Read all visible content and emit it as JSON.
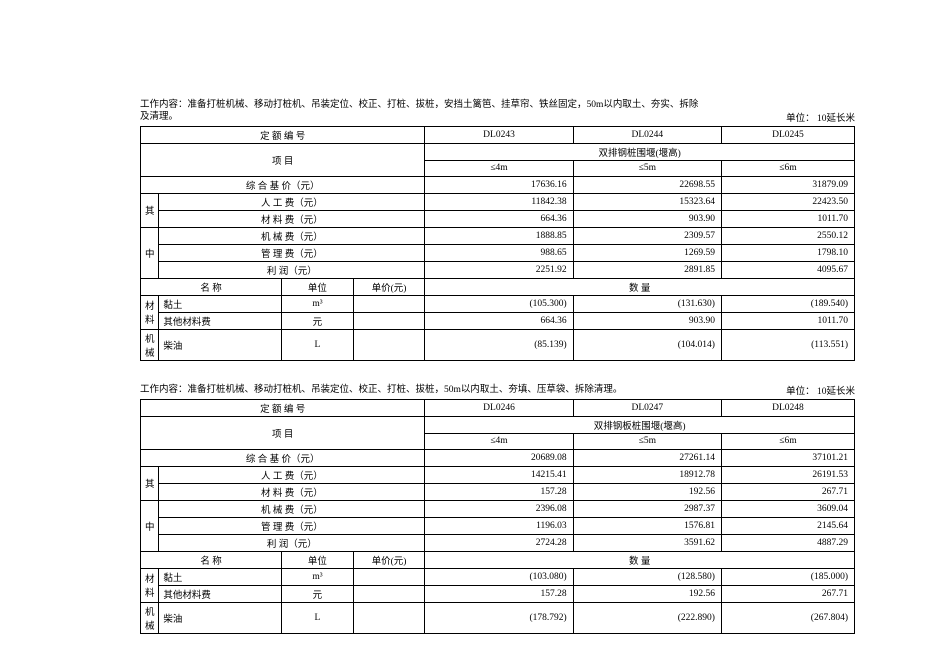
{
  "tables": [
    {
      "desc": "工作内容：准备打桩机械、移动打桩机、吊装定位、校正、打桩、拔桩，安挡土篱笆、挂草帘、铁丝固定，50m以内取土、夯实、拆除及清理。",
      "unit": "单位： 10延长米",
      "header_group": "双排钢桩围堰(堰高)",
      "codes": [
        "DL0243",
        "DL0244",
        "DL0245"
      ],
      "sizes": [
        "≤4m",
        "≤5m",
        "≤6m"
      ],
      "base_price_label": "综  合    基  价（元）",
      "base_price": [
        "17636.16",
        "22698.55",
        "31879.09"
      ],
      "cost_rows": [
        {
          "label": "人    工    费（元）",
          "v": [
            "11842.38",
            "15323.64",
            "22423.50"
          ]
        },
        {
          "label": "材    料    费（元）",
          "v": [
            "664.36",
            "903.90",
            "1011.70"
          ]
        },
        {
          "label": "机    械    费（元）",
          "v": [
            "1888.85",
            "2309.57",
            "2550.12"
          ]
        },
        {
          "label": "管    理    费（元）",
          "v": [
            "988.65",
            "1269.59",
            "1798.10"
          ]
        },
        {
          "label": "利          润（元）",
          "v": [
            "2251.92",
            "2891.85",
            "4095.67"
          ]
        }
      ],
      "side_top": "其",
      "side_bot": "中",
      "itemhdr": {
        "name": "名              称",
        "unit": "单位",
        "price": "单价(元)",
        "qty": "数                            量"
      },
      "mat_side": "材料",
      "mat_rows": [
        {
          "name": "黏土",
          "unit": "m³",
          "price": "",
          "v": [
            "(105.300)",
            "(131.630)",
            "(189.540)"
          ]
        },
        {
          "name": "其他材料费",
          "unit": "元",
          "price": "",
          "v": [
            "664.36",
            "903.90",
            "1011.70"
          ]
        }
      ],
      "mech_side": "机械",
      "mech_rows": [
        {
          "name": "柴油",
          "unit": "L",
          "price": "",
          "v": [
            "(85.139)",
            "(104.014)",
            "(113.551)"
          ]
        }
      ],
      "row_de": "定            额            编            号",
      "row_xiang": "项                             目"
    },
    {
      "desc": "工作内容：准备打桩机械、移动打桩机、吊装定位、校正、打桩、拔桩，50m以内取土、夯填、压草袋、拆除清理。",
      "unit": "单位： 10延长米",
      "header_group": "双排钢板桩围堰(堰高)",
      "codes": [
        "DL0246",
        "DL0247",
        "DL0248"
      ],
      "sizes": [
        "≤4m",
        "≤5m",
        "≤6m"
      ],
      "base_price_label": "综  合    基  价（元）",
      "base_price": [
        "20689.08",
        "27261.14",
        "37101.21"
      ],
      "cost_rows": [
        {
          "label": "人    工    费（元）",
          "v": [
            "14215.41",
            "18912.78",
            "26191.53"
          ]
        },
        {
          "label": "材    料    费（元）",
          "v": [
            "157.28",
            "192.56",
            "267.71"
          ]
        },
        {
          "label": "机    械    费（元）",
          "v": [
            "2396.08",
            "2987.37",
            "3609.04"
          ]
        },
        {
          "label": "管    理    费（元）",
          "v": [
            "1196.03",
            "1576.81",
            "2145.64"
          ]
        },
        {
          "label": "利          润（元）",
          "v": [
            "2724.28",
            "3591.62",
            "4887.29"
          ]
        }
      ],
      "side_top": "其",
      "side_bot": "中",
      "itemhdr": {
        "name": "名              称",
        "unit": "单位",
        "price": "单价(元)",
        "qty": "数                            量"
      },
      "mat_side": "材料",
      "mat_rows": [
        {
          "name": "黏土",
          "unit": "m³",
          "price": "",
          "v": [
            "(103.080)",
            "(128.580)",
            "(185.000)"
          ]
        },
        {
          "name": "其他材料费",
          "unit": "元",
          "price": "",
          "v": [
            "157.28",
            "192.56",
            "267.71"
          ]
        }
      ],
      "mech_side": "机械",
      "mech_rows": [
        {
          "name": "柴油",
          "unit": "L",
          "price": "",
          "v": [
            "(178.792)",
            "(222.890)",
            "(267.804)"
          ]
        }
      ],
      "row_de": "定            额            编            号",
      "row_xiang": "项                             目"
    }
  ]
}
